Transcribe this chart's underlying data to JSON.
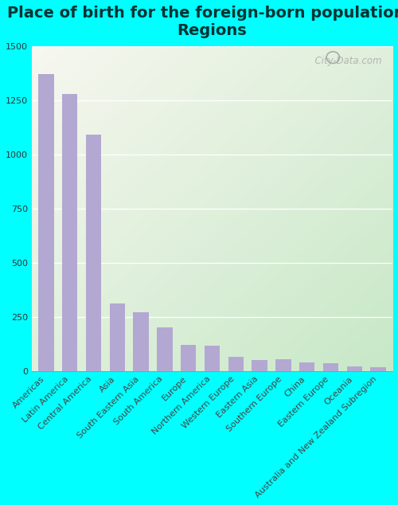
{
  "title": "Place of birth for the foreign-born population -\nRegions",
  "categories": [
    "Americas",
    "Latin America",
    "Central America",
    "Asia",
    "South Eastern Asia",
    "South America",
    "Europe",
    "Northern America",
    "Western Europe",
    "Eastern Asia",
    "Southern Europe",
    "China",
    "Eastern Europe",
    "Oceania",
    "Australia and New Zealand Subregion"
  ],
  "values": [
    1370,
    1280,
    1090,
    310,
    270,
    200,
    120,
    115,
    65,
    50,
    55,
    40,
    35,
    20,
    18
  ],
  "bar_color": "#b3a8d1",
  "fig_bg_color": "#00ffff",
  "plot_bg_gradient_top_left": "#f5f5ee",
  "plot_bg_gradient_bottom_right": "#d8ecd8",
  "ylim": [
    0,
    1500
  ],
  "yticks": [
    0,
    250,
    500,
    750,
    1000,
    1250,
    1500
  ],
  "title_fontsize": 14,
  "tick_fontsize": 8,
  "watermark": "City-Data.com",
  "title_color": "#003333",
  "fig_width": 5.0,
  "fig_height": 6.34,
  "dpi": 100
}
